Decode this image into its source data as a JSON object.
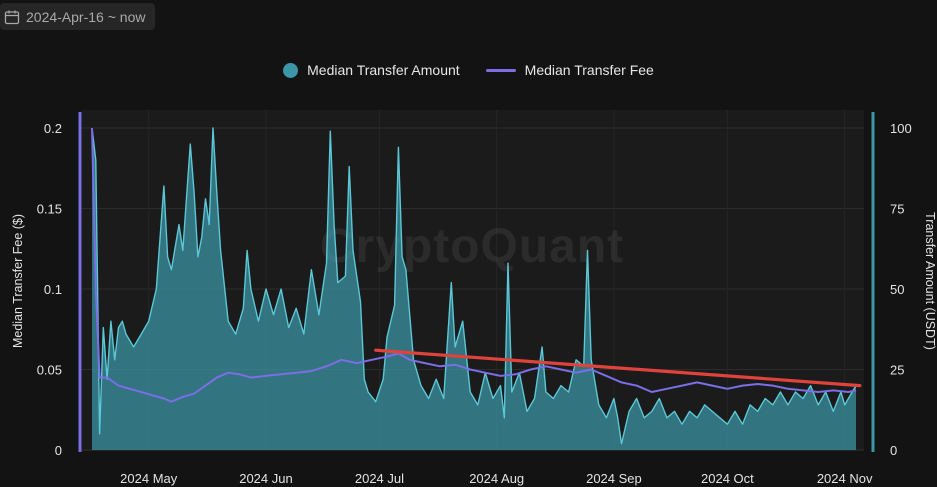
{
  "header": {
    "date_range": "2024-Apr-16 ~ now",
    "calendar_icon": "calendar-icon"
  },
  "legend": {
    "amount_label": "Median Transfer Amount",
    "fee_label": "Median Transfer Fee"
  },
  "watermark": "CryptoQuant",
  "colors": {
    "amount_fill": "#3b97a8",
    "amount_line": "#5cc7d6",
    "fee_line": "#7b6ee6",
    "trend_line": "#e0433c",
    "background": "#131313",
    "plot_background": "#1b1b1b"
  },
  "chart_data": {
    "type": "area",
    "xlabel": "",
    "ylabel_left": "Median Transfer Fee ($)",
    "ylabel_right": "Transfer Amount (USDT)",
    "x_start": "2024-04-16",
    "x_end": "2024-11-04",
    "x_ticks": [
      {
        "label": "2024 May",
        "date": "2024-05-01"
      },
      {
        "label": "2024 Jun",
        "date": "2024-06-01"
      },
      {
        "label": "2024 Jul",
        "date": "2024-07-01"
      },
      {
        "label": "2024 Aug",
        "date": "2024-08-01"
      },
      {
        "label": "2024 Sep",
        "date": "2024-09-01"
      },
      {
        "label": "2024 Oct",
        "date": "2024-10-01"
      },
      {
        "label": "2024 Nov",
        "date": "2024-11-01"
      }
    ],
    "y_left": {
      "min": 0,
      "max": 0.2,
      "ticks": [
        0,
        0.05,
        0.1,
        0.15,
        0.2
      ],
      "tick_labels": [
        "0",
        "0.05",
        "0.1",
        "0.15",
        "0.2"
      ]
    },
    "y_right": {
      "min": 0,
      "max": 100,
      "ticks": [
        0,
        25,
        50,
        75,
        100
      ],
      "tick_labels": [
        "0",
        "25",
        "50",
        "75",
        "100"
      ]
    },
    "grid": true,
    "legend_position": "top-center",
    "series": [
      {
        "name": "Median Transfer Amount",
        "axis": "right",
        "kind": "area",
        "points": [
          [
            "2024-04-16",
            100
          ],
          [
            "2024-04-17",
            90
          ],
          [
            "2024-04-18",
            5
          ],
          [
            "2024-04-19",
            38
          ],
          [
            "2024-04-20",
            22
          ],
          [
            "2024-04-21",
            40
          ],
          [
            "2024-04-22",
            28
          ],
          [
            "2024-04-23",
            38
          ],
          [
            "2024-04-24",
            40
          ],
          [
            "2024-04-25",
            36
          ],
          [
            "2024-04-27",
            32
          ],
          [
            "2024-04-29",
            36
          ],
          [
            "2024-05-01",
            40
          ],
          [
            "2024-05-03",
            50
          ],
          [
            "2024-05-05",
            82
          ],
          [
            "2024-05-06",
            60
          ],
          [
            "2024-05-07",
            56
          ],
          [
            "2024-05-09",
            70
          ],
          [
            "2024-05-10",
            62
          ],
          [
            "2024-05-12",
            95
          ],
          [
            "2024-05-13",
            80
          ],
          [
            "2024-05-14",
            60
          ],
          [
            "2024-05-15",
            66
          ],
          [
            "2024-05-16",
            78
          ],
          [
            "2024-05-17",
            70
          ],
          [
            "2024-05-18",
            100
          ],
          [
            "2024-05-19",
            80
          ],
          [
            "2024-05-20",
            62
          ],
          [
            "2024-05-22",
            40
          ],
          [
            "2024-05-24",
            36
          ],
          [
            "2024-05-26",
            44
          ],
          [
            "2024-05-27",
            62
          ],
          [
            "2024-05-28",
            50
          ],
          [
            "2024-05-30",
            40
          ],
          [
            "2024-06-01",
            50
          ],
          [
            "2024-06-03",
            42
          ],
          [
            "2024-06-05",
            50
          ],
          [
            "2024-06-07",
            38
          ],
          [
            "2024-06-09",
            44
          ],
          [
            "2024-06-11",
            36
          ],
          [
            "2024-06-13",
            56
          ],
          [
            "2024-06-15",
            42
          ],
          [
            "2024-06-17",
            58
          ],
          [
            "2024-06-18",
            99
          ],
          [
            "2024-06-19",
            70
          ],
          [
            "2024-06-20",
            52
          ],
          [
            "2024-06-22",
            54
          ],
          [
            "2024-06-23",
            88
          ],
          [
            "2024-06-24",
            62
          ],
          [
            "2024-06-26",
            46
          ],
          [
            "2024-06-27",
            22
          ],
          [
            "2024-06-28",
            18
          ],
          [
            "2024-06-30",
            15
          ],
          [
            "2024-07-02",
            22
          ],
          [
            "2024-07-03",
            35
          ],
          [
            "2024-07-05",
            45
          ],
          [
            "2024-07-06",
            94
          ],
          [
            "2024-07-07",
            60
          ],
          [
            "2024-07-08",
            56
          ],
          [
            "2024-07-10",
            28
          ],
          [
            "2024-07-12",
            20
          ],
          [
            "2024-07-14",
            16
          ],
          [
            "2024-07-16",
            22
          ],
          [
            "2024-07-18",
            16
          ],
          [
            "2024-07-20",
            52
          ],
          [
            "2024-07-21",
            32
          ],
          [
            "2024-07-23",
            40
          ],
          [
            "2024-07-25",
            18
          ],
          [
            "2024-07-27",
            14
          ],
          [
            "2024-07-29",
            24
          ],
          [
            "2024-07-31",
            16
          ],
          [
            "2024-08-02",
            20
          ],
          [
            "2024-08-03",
            10
          ],
          [
            "2024-08-04",
            58
          ],
          [
            "2024-08-05",
            18
          ],
          [
            "2024-08-07",
            24
          ],
          [
            "2024-08-09",
            12
          ],
          [
            "2024-08-11",
            16
          ],
          [
            "2024-08-13",
            32
          ],
          [
            "2024-08-14",
            18
          ],
          [
            "2024-08-16",
            16
          ],
          [
            "2024-08-18",
            20
          ],
          [
            "2024-08-20",
            18
          ],
          [
            "2024-08-22",
            28
          ],
          [
            "2024-08-24",
            26
          ],
          [
            "2024-08-25",
            62
          ],
          [
            "2024-08-26",
            28
          ],
          [
            "2024-08-28",
            14
          ],
          [
            "2024-08-30",
            10
          ],
          [
            "2024-09-01",
            16
          ],
          [
            "2024-09-02",
            10
          ],
          [
            "2024-09-03",
            2
          ],
          [
            "2024-09-05",
            12
          ],
          [
            "2024-09-07",
            16
          ],
          [
            "2024-09-09",
            10
          ],
          [
            "2024-09-11",
            12
          ],
          [
            "2024-09-13",
            16
          ],
          [
            "2024-09-15",
            10
          ],
          [
            "2024-09-17",
            12
          ],
          [
            "2024-09-19",
            8
          ],
          [
            "2024-09-21",
            12
          ],
          [
            "2024-09-23",
            10
          ],
          [
            "2024-09-25",
            14
          ],
          [
            "2024-09-27",
            12
          ],
          [
            "2024-09-29",
            10
          ],
          [
            "2024-10-01",
            8
          ],
          [
            "2024-10-03",
            12
          ],
          [
            "2024-10-05",
            8
          ],
          [
            "2024-10-07",
            14
          ],
          [
            "2024-10-09",
            12
          ],
          [
            "2024-10-11",
            16
          ],
          [
            "2024-10-13",
            14
          ],
          [
            "2024-10-15",
            18
          ],
          [
            "2024-10-17",
            14
          ],
          [
            "2024-10-19",
            18
          ],
          [
            "2024-10-21",
            16
          ],
          [
            "2024-10-23",
            20
          ],
          [
            "2024-10-25",
            14
          ],
          [
            "2024-10-27",
            18
          ],
          [
            "2024-10-29",
            12
          ],
          [
            "2024-10-31",
            18
          ],
          [
            "2024-11-01",
            14
          ],
          [
            "2024-11-03",
            18
          ],
          [
            "2024-11-04",
            20
          ]
        ]
      },
      {
        "name": "Median Transfer Fee",
        "axis": "left",
        "kind": "line",
        "points": [
          [
            "2024-04-16",
            0.2
          ],
          [
            "2024-04-17",
            0.1
          ],
          [
            "2024-04-18",
            0.045
          ],
          [
            "2024-04-20",
            0.045
          ],
          [
            "2024-04-23",
            0.04
          ],
          [
            "2024-04-26",
            0.038
          ],
          [
            "2024-04-29",
            0.036
          ],
          [
            "2024-05-02",
            0.034
          ],
          [
            "2024-05-05",
            0.032
          ],
          [
            "2024-05-07",
            0.03
          ],
          [
            "2024-05-10",
            0.033
          ],
          [
            "2024-05-13",
            0.035
          ],
          [
            "2024-05-16",
            0.04
          ],
          [
            "2024-05-19",
            0.045
          ],
          [
            "2024-05-22",
            0.048
          ],
          [
            "2024-05-25",
            0.047
          ],
          [
            "2024-05-28",
            0.045
          ],
          [
            "2024-06-01",
            0.046
          ],
          [
            "2024-06-05",
            0.047
          ],
          [
            "2024-06-09",
            0.048
          ],
          [
            "2024-06-13",
            0.049
          ],
          [
            "2024-06-17",
            0.052
          ],
          [
            "2024-06-21",
            0.056
          ],
          [
            "2024-06-25",
            0.054
          ],
          [
            "2024-06-29",
            0.056
          ],
          [
            "2024-07-03",
            0.058
          ],
          [
            "2024-07-06",
            0.06
          ],
          [
            "2024-07-09",
            0.056
          ],
          [
            "2024-07-13",
            0.054
          ],
          [
            "2024-07-17",
            0.052
          ],
          [
            "2024-07-21",
            0.053
          ],
          [
            "2024-07-25",
            0.05
          ],
          [
            "2024-07-29",
            0.048
          ],
          [
            "2024-08-02",
            0.046
          ],
          [
            "2024-08-06",
            0.047
          ],
          [
            "2024-08-10",
            0.05
          ],
          [
            "2024-08-14",
            0.052
          ],
          [
            "2024-08-18",
            0.05
          ],
          [
            "2024-08-22",
            0.048
          ],
          [
            "2024-08-26",
            0.05
          ],
          [
            "2024-08-30",
            0.046
          ],
          [
            "2024-09-03",
            0.042
          ],
          [
            "2024-09-07",
            0.04
          ],
          [
            "2024-09-11",
            0.036
          ],
          [
            "2024-09-15",
            0.038
          ],
          [
            "2024-09-19",
            0.04
          ],
          [
            "2024-09-23",
            0.042
          ],
          [
            "2024-09-27",
            0.04
          ],
          [
            "2024-10-01",
            0.038
          ],
          [
            "2024-10-05",
            0.04
          ],
          [
            "2024-10-09",
            0.041
          ],
          [
            "2024-10-13",
            0.04
          ],
          [
            "2024-10-17",
            0.038
          ],
          [
            "2024-10-21",
            0.037
          ],
          [
            "2024-10-25",
            0.036
          ],
          [
            "2024-10-29",
            0.037
          ],
          [
            "2024-11-02",
            0.036
          ],
          [
            "2024-11-04",
            0.037
          ]
        ]
      },
      {
        "name": "",
        "axis": "left",
        "kind": "trend",
        "points": [
          [
            "2024-06-30",
            0.062
          ],
          [
            "2024-11-05",
            0.04
          ]
        ]
      }
    ]
  }
}
